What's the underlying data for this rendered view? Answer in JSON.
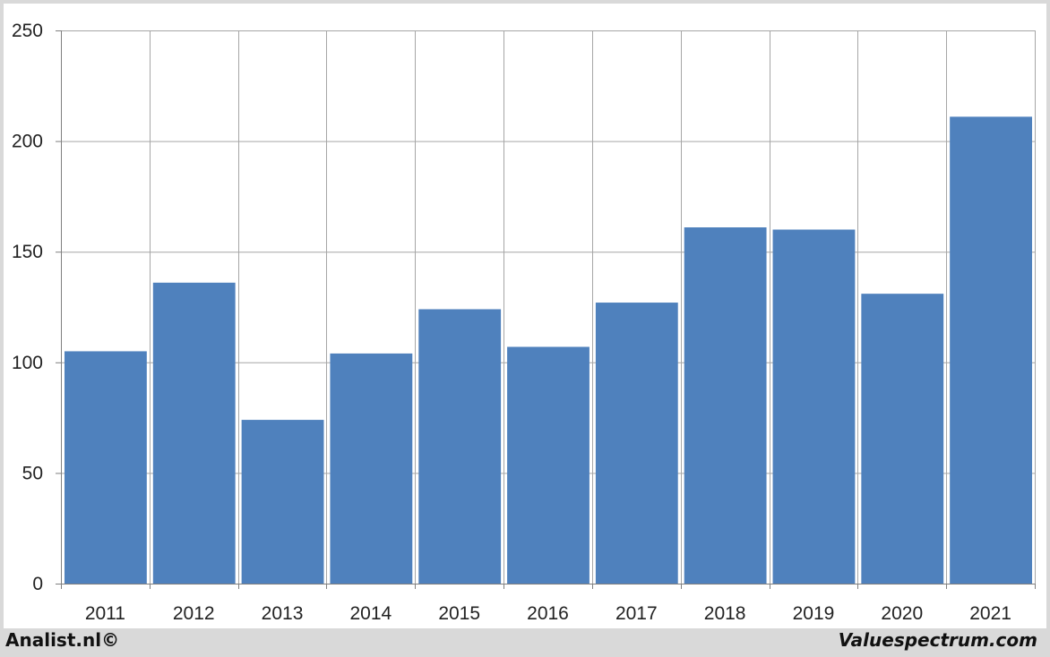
{
  "footer": {
    "left_text": "Analist.nl©",
    "right_text": "Valuespectrum.com"
  },
  "colors": {
    "bar": "#4f81bd",
    "grid": "#a6a6a6",
    "axis": "#7f7f7f",
    "background": "#ffffff",
    "frame": "#d9d9d9"
  },
  "chart_data": {
    "type": "bar",
    "categories": [
      "2011",
      "2012",
      "2013",
      "2014",
      "2015",
      "2016",
      "2017",
      "2018",
      "2019",
      "2020",
      "2021"
    ],
    "values": [
      105,
      136,
      74,
      104,
      124,
      107,
      127,
      161,
      160,
      131,
      211
    ],
    "title": "",
    "xlabel": "",
    "ylabel": "",
    "ylim": [
      0,
      250
    ],
    "yticks": [
      0,
      50,
      100,
      150,
      200,
      250
    ],
    "grid": true,
    "legend": "none"
  }
}
